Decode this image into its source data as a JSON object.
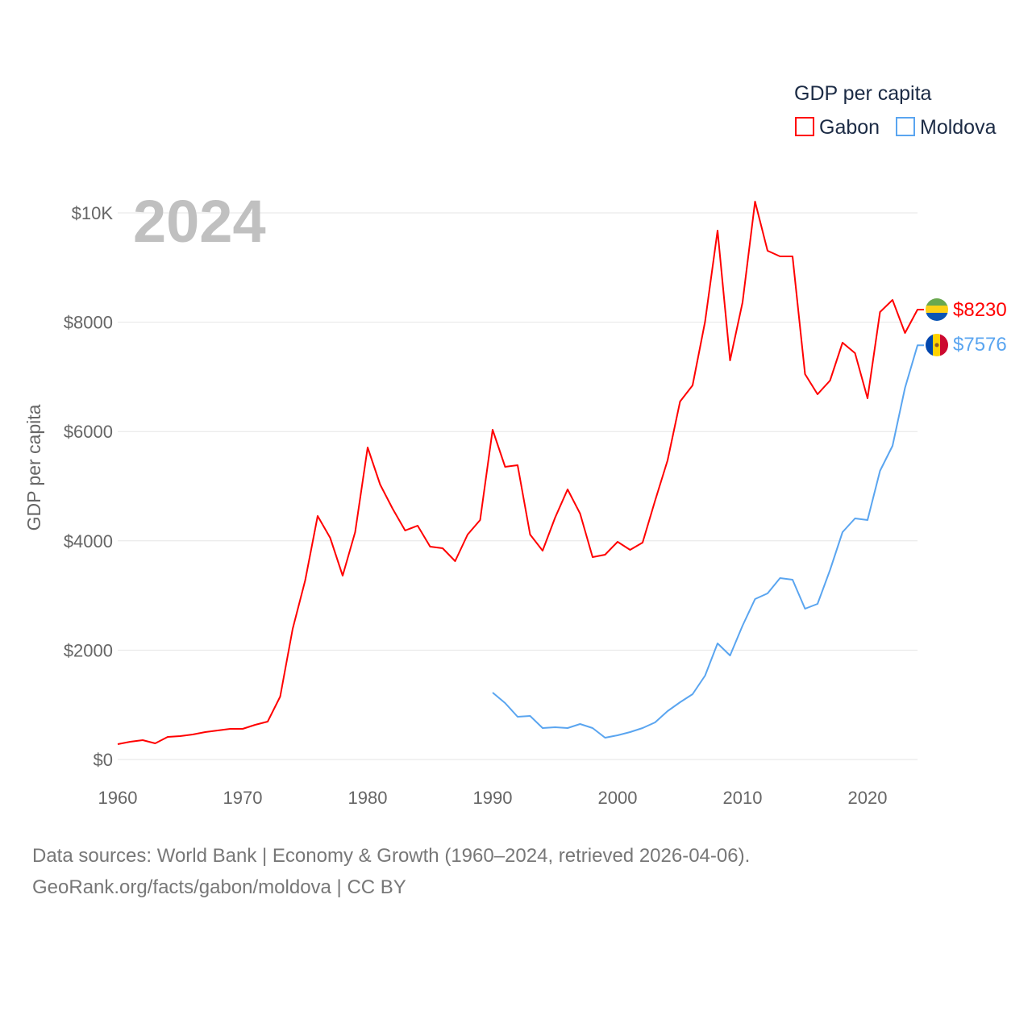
{
  "chart_data": {
    "type": "line",
    "title": "GDP per capita",
    "ylabel": "GDP per capita",
    "xlabel": "",
    "year_label": "2024",
    "ylim": [
      0,
      10000
    ],
    "xlim": [
      1960,
      2024
    ],
    "x_ticks": [
      1960,
      1970,
      1980,
      1990,
      2000,
      2010,
      2020
    ],
    "y_ticks": [
      0,
      2000,
      4000,
      6000,
      8000,
      10000
    ],
    "y_tick_labels": [
      "$0",
      "$2000",
      "$4000",
      "$6000",
      "$8000",
      "$10K"
    ],
    "grid": true,
    "legend_position": "top-right",
    "series": [
      {
        "name": "Gabon",
        "color": "#ff0000",
        "end_label": "$8230",
        "x_start": 1960,
        "values": [
          280,
          325,
          354,
          295,
          413,
          428,
          457,
          501,
          531,
          560,
          560,
          634,
          693,
          1150,
          2390,
          3275,
          4454,
          4056,
          3363,
          4159,
          5708,
          5030,
          4587,
          4189,
          4277,
          3894,
          3864,
          3628,
          4115,
          4381,
          6032,
          5354,
          5383,
          4115,
          3820,
          4425,
          4941,
          4499,
          3702,
          3746,
          3982,
          3835,
          3967,
          4735,
          5472,
          6549,
          6844,
          8009,
          9676,
          7301,
          8363,
          10206,
          9307,
          9204,
          9204,
          7050,
          6681,
          6932,
          7625,
          7434,
          6608,
          8186,
          8407,
          7802,
          8230
        ]
      },
      {
        "name": "Moldova",
        "color": "#5aa5f0",
        "end_label": "$7576",
        "x_start": 1990,
        "values": [
          1224,
          1032,
          782,
          796,
          575,
          590,
          575,
          649,
          575,
          398,
          442,
          501,
          575,
          678,
          885,
          1047,
          1195,
          1534,
          2124,
          1903,
          2448,
          2935,
          3038,
          3318,
          3289,
          2758,
          2847,
          3466,
          4159,
          4410,
          4381,
          5280,
          5737,
          6799,
          7576
        ]
      }
    ]
  },
  "footer": {
    "line1": "Data sources: World Bank | Economy & Growth (1960–2024, retrieved 2026-04-06).",
    "line2": "GeoRank.org/facts/gabon/moldova | CC BY"
  }
}
